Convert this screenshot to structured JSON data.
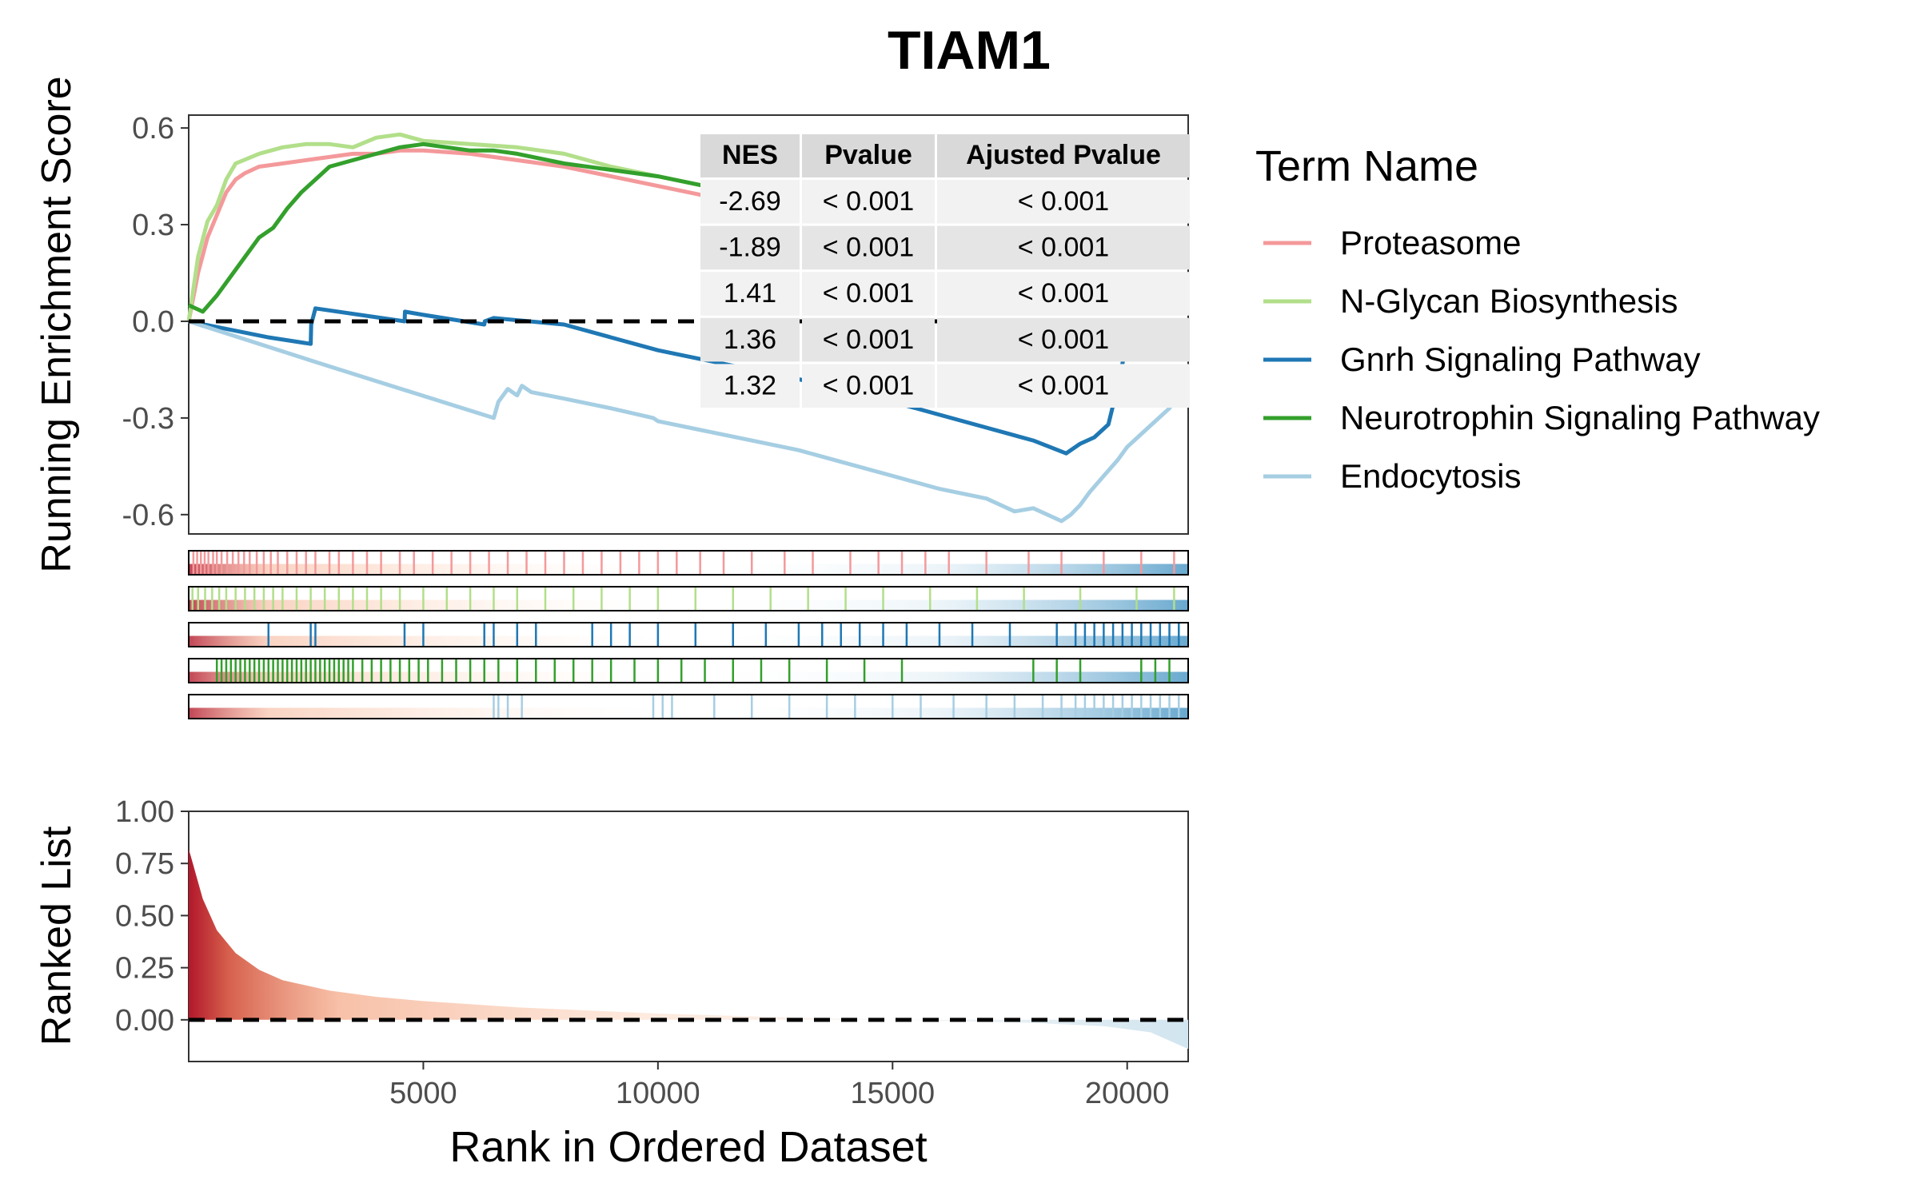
{
  "chart_data": {
    "type": "line",
    "title": "TIAM1",
    "ylabel": "Running Enrichment Score",
    "xlabel": "Rank in Ordered Dataset",
    "x_range": [
      0,
      21300
    ],
    "xticks": [
      5000,
      10000,
      15000,
      20000
    ],
    "xtick_labels": [
      "5000",
      "10000",
      "15000",
      "20000"
    ],
    "es_ylim": [
      -0.66,
      0.64
    ],
    "es_yticks": [
      -0.6,
      -0.3,
      0.0,
      0.3,
      0.6
    ],
    "es_ytick_labels": [
      "-0.6",
      "-0.3",
      "0.0",
      "0.3",
      "0.6"
    ],
    "legend": {
      "title": "Term Name",
      "position": "right"
    },
    "series": [
      {
        "name": "Proteasome",
        "color": "#F4999B",
        "x": [
          0,
          200,
          400,
          600,
          800,
          1000,
          1200,
          1500,
          2000,
          2500,
          3000,
          3500,
          4000,
          4500,
          5000,
          6000,
          7000,
          8000,
          9000,
          10000,
          11000,
          12000
        ],
        "y": [
          0.0,
          0.15,
          0.26,
          0.33,
          0.4,
          0.44,
          0.46,
          0.48,
          0.49,
          0.5,
          0.51,
          0.52,
          0.52,
          0.53,
          0.53,
          0.52,
          0.5,
          0.48,
          0.45,
          0.42,
          0.39,
          0.36
        ],
        "hits_x": [
          100,
          180,
          260,
          340,
          420,
          520,
          600,
          700,
          820,
          940,
          1060,
          1180,
          1300,
          1450,
          1600,
          1750,
          1900,
          2100,
          2300,
          2500,
          2700,
          3000,
          3200,
          3500,
          3800,
          4100,
          4500,
          4800,
          5200,
          5600,
          6000,
          6400,
          6800,
          7200,
          7600,
          8000,
          8400,
          8800,
          9200,
          9600,
          10000,
          10400,
          10900,
          11400,
          12000,
          12700,
          13300,
          14100,
          14700,
          15200,
          15700,
          16200,
          17000,
          17900,
          18600,
          19500,
          20300,
          21000
        ]
      },
      {
        "name": "N-Glycan Biosynthesis",
        "color": "#B2DF8A",
        "x": [
          0,
          200,
          400,
          600,
          800,
          1000,
          1500,
          2000,
          2500,
          3000,
          3500,
          4000,
          4500,
          5000,
          6000,
          7000,
          8000,
          9000,
          10000,
          11000
        ],
        "y": [
          0.0,
          0.2,
          0.31,
          0.36,
          0.44,
          0.49,
          0.52,
          0.54,
          0.55,
          0.55,
          0.54,
          0.57,
          0.58,
          0.56,
          0.55,
          0.54,
          0.52,
          0.48,
          0.45,
          0.42
        ],
        "hits_x": [
          80,
          200,
          350,
          500,
          650,
          800,
          1000,
          1200,
          1400,
          1600,
          1800,
          2000,
          2300,
          2600,
          2900,
          3200,
          3500,
          3800,
          4100,
          4500,
          5000,
          5500,
          6000,
          6500,
          7000,
          7600,
          8200,
          8800,
          9400,
          10000,
          10800,
          11600,
          12400,
          13200,
          14000,
          14800,
          15800,
          16800,
          17800,
          19000,
          20200,
          21000
        ]
      },
      {
        "name": "Gnrh Signaling Pathway",
        "color": "#1F78B4",
        "x": [
          0,
          1700,
          1710,
          2600,
          2610,
          2700,
          4600,
          4610,
          5000,
          6300,
          6310,
          6500,
          8000,
          9000,
          10000,
          11000,
          12000,
          13000,
          14000,
          15000,
          16000,
          17000,
          18000,
          18700,
          19000,
          19300,
          19600,
          19800,
          20000
        ],
        "y": [
          0.0,
          -0.05,
          -0.05,
          -0.07,
          -0.01,
          0.04,
          0.0,
          0.03,
          0.02,
          -0.01,
          0.0,
          0.01,
          -0.01,
          -0.05,
          -0.09,
          -0.12,
          -0.15,
          -0.18,
          -0.21,
          -0.25,
          -0.29,
          -0.33,
          -0.37,
          -0.41,
          -0.38,
          -0.36,
          -0.32,
          -0.2,
          -0.06
        ],
        "hits_x": [
          1700,
          2600,
          2700,
          4600,
          5000,
          6300,
          6500,
          7000,
          7400,
          8600,
          9000,
          9400,
          10000,
          10800,
          11600,
          12300,
          13000,
          13500,
          13900,
          14300,
          14800,
          15300,
          16000,
          16700,
          17500,
          18500,
          18900,
          19100,
          19300,
          19500,
          19700,
          19900,
          20100,
          20300,
          20500,
          20700,
          20900,
          21100
        ]
      },
      {
        "name": "Neurotrophin Signaling Pathway",
        "color": "#33A02C",
        "x": [
          0,
          300,
          600,
          900,
          1200,
          1500,
          1800,
          2100,
          2400,
          2700,
          3000,
          3500,
          4000,
          4500,
          5000,
          5500,
          6000,
          6500,
          7000,
          8000,
          9000,
          10000,
          11000
        ],
        "y": [
          0.05,
          0.03,
          0.08,
          0.14,
          0.2,
          0.26,
          0.29,
          0.35,
          0.4,
          0.44,
          0.48,
          0.5,
          0.52,
          0.54,
          0.55,
          0.54,
          0.53,
          0.53,
          0.52,
          0.49,
          0.47,
          0.45,
          0.42
        ],
        "hits_x": [
          600,
          700,
          800,
          900,
          1000,
          1100,
          1200,
          1300,
          1400,
          1500,
          1600,
          1700,
          1800,
          1900,
          2000,
          2100,
          2200,
          2300,
          2400,
          2500,
          2600,
          2700,
          2800,
          2900,
          3000,
          3100,
          3200,
          3300,
          3400,
          3500,
          3700,
          3900,
          4100,
          4300,
          4500,
          4700,
          4900,
          5100,
          5400,
          5700,
          6000,
          6300,
          6600,
          7000,
          7400,
          7800,
          8200,
          8600,
          9000,
          9500,
          10000,
          10500,
          11000,
          11600,
          12200,
          12800,
          13600,
          14400,
          15200,
          18000,
          18500,
          19000,
          20300,
          20600,
          20900
        ]
      },
      {
        "name": "Endocytosis",
        "color": "#A6CEE3",
        "x": [
          0,
          3000,
          6500,
          6600,
          6800,
          7000,
          7100,
          7300,
          8000,
          9000,
          9900,
          10000,
          11000,
          12000,
          13000,
          14000,
          15000,
          15500,
          16000,
          17000,
          17600,
          18000,
          18600,
          18800,
          19000,
          19200,
          19500,
          19800,
          20000,
          20300,
          20600,
          20900,
          21100
        ],
        "y": [
          0.0,
          -0.14,
          -0.3,
          -0.25,
          -0.21,
          -0.23,
          -0.2,
          -0.22,
          -0.24,
          -0.27,
          -0.3,
          -0.31,
          -0.34,
          -0.37,
          -0.4,
          -0.44,
          -0.48,
          -0.5,
          -0.52,
          -0.55,
          -0.59,
          -0.58,
          -0.62,
          -0.6,
          -0.57,
          -0.53,
          -0.48,
          -0.43,
          -0.39,
          -0.35,
          -0.31,
          -0.27,
          -0.22
        ],
        "hits_x": [
          6500,
          6600,
          6800,
          7100,
          9900,
          10100,
          10300,
          11200,
          12000,
          12800,
          13600,
          14200,
          15000,
          15600,
          16300,
          17000,
          17600,
          18200,
          18600,
          18900,
          19100,
          19300,
          19500,
          19700,
          19900,
          20100,
          20300,
          20500,
          20700,
          20900,
          21100
        ]
      }
    ],
    "ranked_list": {
      "ylabel": "Ranked List",
      "ylim": [
        -0.2,
        1.0
      ],
      "yticks": [
        0.0,
        0.25,
        0.5,
        0.75,
        1.0
      ],
      "ytick_labels": [
        "0.00",
        "0.25",
        "0.50",
        "0.75",
        "1.00"
      ],
      "x": [
        0,
        100,
        300,
        600,
        1000,
        1500,
        2000,
        3000,
        4000,
        5000,
        7000,
        10000,
        13000,
        16000,
        18000,
        19500,
        20500,
        21300
      ],
      "y": [
        0.82,
        0.74,
        0.58,
        0.43,
        0.32,
        0.24,
        0.19,
        0.14,
        0.11,
        0.09,
        0.06,
        0.03,
        0.01,
        -0.005,
        -0.015,
        -0.03,
        -0.06,
        -0.14
      ]
    },
    "table": {
      "columns": [
        "NES",
        "Pvalue",
        "Ajusted Pvalue"
      ],
      "rows": [
        [
          "-2.69",
          "< 0.001",
          "< 0.001"
        ],
        [
          "-1.89",
          "< 0.001",
          "< 0.001"
        ],
        [
          "1.41",
          "< 0.001",
          "< 0.001"
        ],
        [
          "1.36",
          "< 0.001",
          "< 0.001"
        ],
        [
          "1.32",
          "< 0.001",
          "< 0.001"
        ]
      ]
    }
  }
}
